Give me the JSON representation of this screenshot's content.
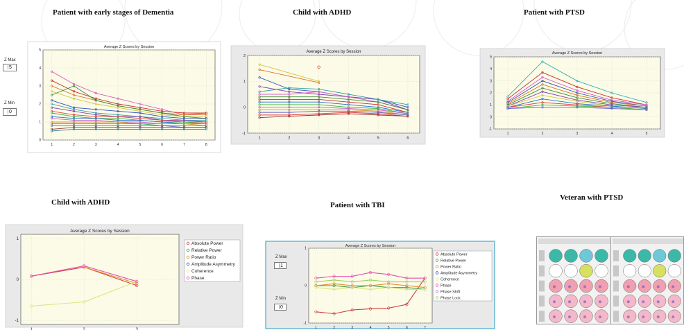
{
  "captions": {
    "p1": "Patient with early stages of Dementia",
    "p2": "Child with ADHD",
    "p3": "Patient with PTSD",
    "p4": "Child with ADHD",
    "p5": "Patient with TBI",
    "p6": "Veteran with PTSD"
  },
  "z_controls": {
    "p1": {
      "max_label": "Z Max",
      "max_value": "5",
      "min_label": "Z Min",
      "min_value": "0"
    },
    "p5": {
      "max_label": "Z Max",
      "max_value": "1",
      "min_label": "Z Min",
      "min_value": "0"
    }
  },
  "colors": {
    "plot_bg": "#fbfbe8",
    "frame_bg": "#e9e9e9",
    "accent_pink": "#e64fa8",
    "accent_yellow": "#dde680"
  },
  "chart_data": [
    {
      "id": "p1",
      "type": "line",
      "title": "Average Z Scores by Session",
      "x": [
        1,
        2,
        3,
        4,
        5,
        6,
        7,
        8
      ],
      "xlim": [
        0.6,
        8.4
      ],
      "ylim": [
        0,
        5
      ],
      "yticks": [
        0,
        1,
        2,
        3,
        4,
        5
      ],
      "xticks": [
        1,
        2,
        3,
        4,
        5,
        6,
        7,
        8
      ],
      "grid": true,
      "note": "many overlapping series (approximate)",
      "series": [
        {
          "color": "#d85cc8",
          "values": [
            3.8,
            3.1,
            2.6,
            2.3,
            2.0,
            1.7,
            1.4,
            1.5
          ]
        },
        {
          "color": "#c83030",
          "values": [
            3.3,
            2.7,
            2.3,
            2.0,
            1.8,
            1.6,
            1.5,
            1.5
          ]
        },
        {
          "color": "#e07020",
          "values": [
            3.0,
            2.5,
            2.2,
            1.9,
            1.7,
            1.5,
            1.4,
            1.4
          ]
        },
        {
          "color": "#d4c640",
          "values": [
            2.7,
            2.3,
            2.0,
            1.8,
            1.6,
            1.4,
            1.3,
            1.3
          ]
        },
        {
          "color": "#3c8c3c",
          "values": [
            2.5,
            3.0,
            2.2,
            1.9,
            1.7,
            1.5,
            1.3,
            1.2
          ]
        },
        {
          "color": "#3050b8",
          "values": [
            2.2,
            1.8,
            1.7,
            1.6,
            1.5,
            1.3,
            1.2,
            1.2
          ]
        },
        {
          "color": "#30a0b0",
          "values": [
            2.0,
            1.7,
            1.5,
            1.4,
            1.3,
            1.2,
            1.1,
            1.1
          ]
        },
        {
          "color": "#8040b0",
          "values": [
            1.8,
            1.6,
            1.4,
            1.3,
            1.3,
            1.1,
            1.1,
            1.0
          ]
        },
        {
          "color": "#e04040",
          "values": [
            1.6,
            1.4,
            1.3,
            1.3,
            1.2,
            1.1,
            1.0,
            1.0
          ]
        },
        {
          "color": "#40b040",
          "values": [
            1.5,
            1.3,
            1.2,
            1.2,
            1.1,
            1.0,
            1.0,
            0.9
          ]
        },
        {
          "color": "#2070d0",
          "values": [
            1.3,
            1.2,
            1.2,
            1.1,
            1.1,
            1.0,
            0.9,
            0.9
          ]
        },
        {
          "color": "#c060c0",
          "values": [
            1.2,
            1.1,
            1.1,
            1.0,
            1.0,
            0.9,
            0.9,
            0.9
          ]
        },
        {
          "color": "#d09030",
          "values": [
            1.0,
            1.0,
            1.0,
            1.0,
            0.9,
            0.9,
            0.9,
            0.8
          ]
        },
        {
          "color": "#30a060",
          "values": [
            0.9,
            0.9,
            0.9,
            0.9,
            0.9,
            0.8,
            0.8,
            0.8
          ]
        },
        {
          "color": "#6060d0",
          "values": [
            0.8,
            0.8,
            0.8,
            0.8,
            0.8,
            0.8,
            0.7,
            0.7
          ]
        },
        {
          "color": "#a03030",
          "values": [
            0.6,
            0.7,
            0.7,
            0.7,
            0.7,
            0.7,
            0.7,
            0.7
          ]
        },
        {
          "color": "#2090a0",
          "values": [
            0.5,
            0.6,
            0.6,
            0.6,
            0.6,
            0.6,
            0.6,
            0.6
          ]
        }
      ]
    },
    {
      "id": "p2",
      "type": "line",
      "title": "Average Z Scores by Session",
      "x": [
        1,
        2,
        3,
        4,
        5,
        6
      ],
      "xlim": [
        0.6,
        6.4
      ],
      "ylim": [
        -1,
        2
      ],
      "yticks": [
        -1,
        0,
        1,
        2
      ],
      "xticks": [
        1,
        2,
        3,
        4,
        5,
        6
      ],
      "grid": true,
      "note": "many overlapping series (approximate)",
      "series": [
        {
          "color": "#d4c640",
          "values": [
            1.65,
            null,
            1.0,
            null,
            null,
            null
          ]
        },
        {
          "color": "#e07020",
          "values": [
            1.45,
            null,
            0.95,
            null,
            null,
            null
          ]
        },
        {
          "color": "#3050b8",
          "values": [
            1.15,
            0.7,
            0.6,
            0.4,
            0.3,
            0.0
          ]
        },
        {
          "color": "#8040b0",
          "values": [
            0.8,
            0.6,
            0.5,
            0.4,
            0.3,
            -0.1
          ]
        },
        {
          "color": "#30a0b0",
          "values": [
            0.6,
            0.75,
            0.7,
            0.5,
            0.3,
            0.1
          ]
        },
        {
          "color": "#d85cc8",
          "values": [
            0.5,
            0.5,
            0.6,
            0.4,
            0.2,
            -0.1
          ]
        },
        {
          "color": "#3c8c3c",
          "values": [
            0.4,
            0.4,
            0.4,
            0.3,
            0.2,
            -0.1
          ]
        },
        {
          "color": "#c83030",
          "values": [
            0.3,
            0.3,
            0.3,
            0.2,
            0.1,
            -0.2
          ]
        },
        {
          "color": "#2070d0",
          "values": [
            0.2,
            0.2,
            0.2,
            0.1,
            0.0,
            -0.2
          ]
        },
        {
          "color": "#40b040",
          "values": [
            0.1,
            0.1,
            0.1,
            0.0,
            -0.05,
            -0.25
          ]
        },
        {
          "color": "#c060c0",
          "values": [
            0.0,
            0.0,
            0.0,
            -0.05,
            -0.1,
            -0.25
          ]
        },
        {
          "color": "#d09030",
          "values": [
            -0.1,
            -0.1,
            -0.1,
            -0.1,
            -0.15,
            -0.3
          ]
        },
        {
          "color": "#6060d0",
          "values": [
            -0.2,
            -0.2,
            -0.15,
            -0.15,
            -0.2,
            -0.3
          ]
        },
        {
          "color": "#e04040",
          "values": [
            -0.3,
            -0.3,
            -0.25,
            -0.2,
            -0.25,
            -0.35
          ]
        },
        {
          "color": "#a03030",
          "values": [
            -0.4,
            -0.35,
            -0.3,
            -0.25,
            -0.3,
            -0.35
          ]
        }
      ],
      "outlier": {
        "x": 3,
        "y": 1.55,
        "color": "#e04040"
      }
    },
    {
      "id": "p3",
      "type": "line",
      "title": "Average Z Scores by Session",
      "x": [
        1,
        2,
        3,
        4,
        5
      ],
      "xlim": [
        0.6,
        5.4
      ],
      "ylim": [
        -1,
        5
      ],
      "yticks": [
        -1,
        0,
        1,
        2,
        3,
        4,
        5
      ],
      "xticks": [
        1,
        2,
        3,
        4,
        5
      ],
      "grid": true,
      "note": "many overlapping series (approximate)",
      "series": [
        {
          "color": "#30b0b0",
          "values": [
            1.7,
            4.6,
            3.0,
            2.0,
            1.2
          ]
        },
        {
          "color": "#c83030",
          "values": [
            1.5,
            3.7,
            2.5,
            1.6,
            1.0
          ]
        },
        {
          "color": "#d85cc8",
          "values": [
            1.3,
            3.3,
            2.2,
            1.4,
            1.0
          ]
        },
        {
          "color": "#3050b8",
          "values": [
            1.2,
            3.0,
            2.0,
            1.3,
            0.9
          ]
        },
        {
          "color": "#e07020",
          "values": [
            1.1,
            2.7,
            1.8,
            1.2,
            0.9
          ]
        },
        {
          "color": "#3c8c3c",
          "values": [
            1.0,
            2.4,
            1.6,
            1.1,
            0.8
          ]
        },
        {
          "color": "#8040b0",
          "values": [
            0.9,
            2.1,
            1.4,
            1.0,
            0.8
          ]
        },
        {
          "color": "#d4c640",
          "values": [
            0.9,
            1.8,
            1.3,
            0.9,
            0.7
          ]
        },
        {
          "color": "#2070d0",
          "values": [
            0.8,
            1.5,
            1.1,
            0.9,
            0.7
          ]
        },
        {
          "color": "#e04040",
          "values": [
            0.8,
            1.2,
            1.0,
            0.8,
            0.6
          ]
        },
        {
          "color": "#40b040",
          "values": [
            0.7,
            1.0,
            0.9,
            0.8,
            0.6
          ]
        },
        {
          "color": "#6060d0",
          "values": [
            0.7,
            0.8,
            0.8,
            0.7,
            0.6
          ]
        }
      ]
    },
    {
      "id": "p4",
      "type": "line",
      "title": "Average Z Scores by Session",
      "x": [
        1,
        2,
        3
      ],
      "xlim": [
        0.8,
        3.8
      ],
      "ylim": [
        -1.1,
        1.1
      ],
      "yticks": [
        -1,
        0,
        1
      ],
      "xticks": [
        1,
        2,
        3
      ],
      "grid": true,
      "legend": "right",
      "series": [
        {
          "name": "Absolute Power",
          "color": "#d04040",
          "values": [
            0.08,
            0.3,
            -0.15
          ]
        },
        {
          "name": "Relative Power",
          "color": "#40a040",
          "values": [
            null,
            null,
            null
          ]
        },
        {
          "name": "Power Ratio",
          "color": "#e09030",
          "values": [
            null,
            0.3,
            -0.1
          ]
        },
        {
          "name": "Amplitude Asymmetry",
          "color": "#3050c0",
          "values": [
            null,
            null,
            null
          ]
        },
        {
          "name": "Coherence",
          "color": "#dde680",
          "values": [
            -0.65,
            -0.55,
            -0.05
          ]
        },
        {
          "name": "Phase",
          "color": "#e64fa8",
          "values": [
            0.08,
            0.33,
            -0.05
          ]
        }
      ]
    },
    {
      "id": "p5",
      "type": "line",
      "title": "Average Z Scores by Session",
      "x": [
        1,
        2,
        3,
        4,
        5,
        6,
        7
      ],
      "xlim": [
        0.6,
        7.4
      ],
      "ylim": [
        -1,
        1
      ],
      "yticks": [
        -1,
        0,
        1
      ],
      "xticks": [
        1,
        2,
        3,
        4,
        5,
        6,
        7
      ],
      "grid": true,
      "legend": "right",
      "series": [
        {
          "name": "Absolute Power",
          "color": "#d04040",
          "values": [
            -0.7,
            -0.75,
            -0.65,
            -0.62,
            -0.6,
            -0.5,
            0.2
          ]
        },
        {
          "name": "Relative Power",
          "color": "#40a040",
          "values": [
            0.0,
            0.0,
            -0.05,
            0.0,
            -0.05,
            -0.05,
            -0.1
          ]
        },
        {
          "name": "Power Ratio",
          "color": "#e09030",
          "values": [
            0.0,
            0.05,
            0.0,
            0.0,
            0.05,
            0.0,
            -0.05
          ]
        },
        {
          "name": "Amplitude Asymmetry",
          "color": "#3050c0",
          "values": [
            null,
            null,
            null,
            null,
            null,
            null,
            null
          ]
        },
        {
          "name": "Coherence",
          "color": "#dde680",
          "values": [
            -0.05,
            -0.1,
            -0.05,
            -0.1,
            -0.05,
            -0.1,
            -0.1
          ]
        },
        {
          "name": "Phase",
          "color": "#e64fa8",
          "values": [
            0.2,
            0.25,
            0.25,
            0.35,
            0.3,
            0.2,
            0.2
          ]
        },
        {
          "name": "Phase Shift",
          "color": "#c070d0",
          "values": [
            null,
            null,
            null,
            null,
            null,
            null,
            null
          ]
        },
        {
          "name": "Phase Lock",
          "color": "#a0d060",
          "values": [
            0.1,
            0.15,
            0.1,
            0.15,
            0.1,
            0.1,
            0.1
          ]
        }
      ]
    }
  ]
}
